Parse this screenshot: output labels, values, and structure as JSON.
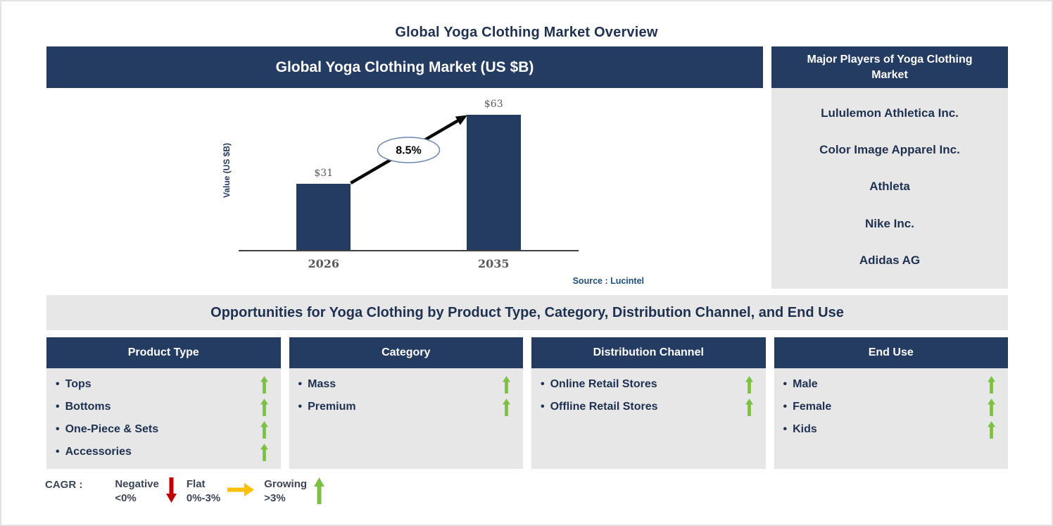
{
  "page_title": "Global Yoga Clothing Market Overview",
  "chart_panel": {
    "title": "Global Yoga Clothing Market (US $B)",
    "source": "Source : Lucintel"
  },
  "chart_data": {
    "type": "bar",
    "title": "Global Yoga Clothing Market (US $B)",
    "categories": [
      "2026",
      "2035"
    ],
    "values": [
      31,
      63
    ],
    "value_labels": [
      "$31",
      "$63"
    ],
    "xlabel": "",
    "ylabel": "Value (US $B)",
    "ylim": [
      0,
      70
    ],
    "grid": false,
    "legend_position": "none",
    "bar_color": "#243B62",
    "cagr_label": "8.5%",
    "annotation": "CAGR arrow from 2026 bar to 2035 bar labeled 8.5%"
  },
  "major_players": {
    "title": "Major Players of Yoga Clothing Market",
    "companies": [
      "Lululemon Athletica Inc.",
      "Color Image Apparel Inc.",
      "Athleta",
      "Nike Inc.",
      "Adidas AG"
    ]
  },
  "opportunities": {
    "title": "Opportunities for Yoga Clothing by Product Type, Category, Distribution Channel, and End Use",
    "trend_icon": "up-arrow",
    "columns": [
      {
        "header": "Product Type",
        "items": [
          "Tops",
          "Bottoms",
          "One-Piece & Sets",
          "Accessories"
        ]
      },
      {
        "header": "Category",
        "items": [
          "Mass",
          "Premium"
        ]
      },
      {
        "header": "Distribution Channel",
        "items": [
          "Online Retail Stores",
          "Offline Retail Stores"
        ]
      },
      {
        "header": "End Use",
        "items": [
          "Male",
          "Female",
          "Kids"
        ]
      }
    ]
  },
  "legend": {
    "prefix": "CAGR :",
    "entries": [
      {
        "label": "Negative",
        "range": "<0%",
        "icon": "down-arrow",
        "color": "#C00000"
      },
      {
        "label": "Flat",
        "range": "0%-3%",
        "icon": "right-arrow",
        "color": "#FFC000"
      },
      {
        "label": "Growing",
        "range": ">3%",
        "icon": "up-arrow",
        "color": "#7DC142"
      }
    ]
  },
  "colors": {
    "navy": "#243B62",
    "light_gray": "#E7E7E7",
    "green": "#7DC142",
    "red": "#C00000",
    "yellow": "#FFC000",
    "text_dark": "#1F3151",
    "chart_gray": "#595959",
    "source_blue": "#1F4E79"
  }
}
